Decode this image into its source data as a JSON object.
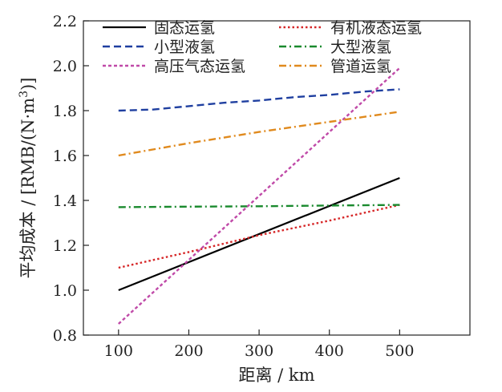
{
  "chart_data": {
    "type": "line",
    "title": "",
    "xlabel": "距离 / km",
    "ylabel_prefix": "平均成本 / [RMB/(N·m",
    "ylabel_sup": "3",
    "ylabel_suffix": ")]",
    "xlim": [
      50,
      600
    ],
    "ylim": [
      0.8,
      2.2
    ],
    "xticks": [
      100,
      200,
      300,
      400,
      500
    ],
    "yticks": [
      0.8,
      1.0,
      1.2,
      1.4,
      1.6,
      1.8,
      2.0,
      2.2
    ],
    "ytick_labels": [
      "0.8",
      "1.0",
      "1.2",
      "1.4",
      "1.6",
      "1.8",
      "2.0",
      "2.2"
    ],
    "grid": false,
    "legend_placement": "top",
    "series": [
      {
        "name": "固态运氢",
        "color": "#000000",
        "dash": "solid",
        "x": [
          100,
          500
        ],
        "y": [
          1.0,
          1.5
        ]
      },
      {
        "name": "有机液态运氢",
        "color": "#d62728",
        "dash": "dot",
        "x": [
          100,
          200,
          300,
          400,
          500
        ],
        "y": [
          1.1,
          1.17,
          1.245,
          1.31,
          1.38
        ]
      },
      {
        "name": "小型液氢",
        "color": "#1f3fa0",
        "dash": "dash",
        "x": [
          100,
          150,
          200,
          250,
          300,
          350,
          400,
          450,
          500
        ],
        "y": [
          1.8,
          1.805,
          1.82,
          1.835,
          1.845,
          1.86,
          1.87,
          1.885,
          1.895
        ]
      },
      {
        "name": "大型液氢",
        "color": "#1a8a2e",
        "dash": "dashdot",
        "x": [
          100,
          200,
          300,
          400,
          500
        ],
        "y": [
          1.37,
          1.372,
          1.374,
          1.377,
          1.38
        ]
      },
      {
        "name": "高压气态运氢",
        "color": "#c04aa8",
        "dash": "shortdash",
        "x": [
          100,
          500
        ],
        "y": [
          0.85,
          1.99
        ]
      },
      {
        "name": "管道运氢",
        "color": "#e08a1e",
        "dash": "dashdot",
        "x": [
          100,
          200,
          300,
          400,
          500
        ],
        "y": [
          1.6,
          1.655,
          1.705,
          1.75,
          1.795
        ]
      }
    ]
  }
}
